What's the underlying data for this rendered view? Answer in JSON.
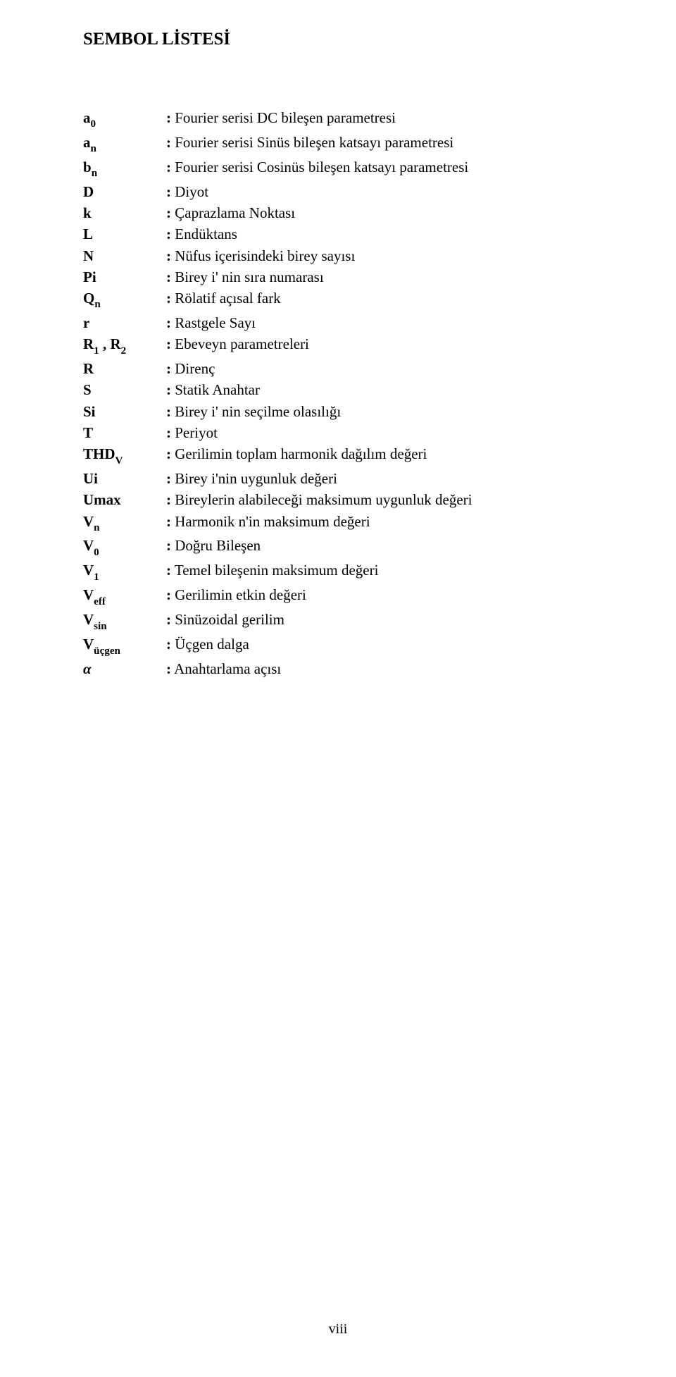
{
  "title": "SEMBOL LİSTESİ",
  "rows": [
    {
      "sym_html": "a<span class='sub'>0</span>",
      "desc": "Fourier serisi DC bileşen parametresi"
    },
    {
      "sym_html": "a<span class='sub'>n</span>",
      "desc": "Fourier serisi Sinüs bileşen katsayı parametresi"
    },
    {
      "sym_html": "b<span class='sub'>n</span>",
      "desc": "Fourier serisi Cosinüs bileşen katsayı parametresi"
    },
    {
      "sym_html": "D",
      "desc": "Diyot"
    },
    {
      "sym_html": "k",
      "desc": "Çaprazlama Noktası"
    },
    {
      "sym_html": "L",
      "desc": "Endüktans"
    },
    {
      "sym_html": "N",
      "desc": "Nüfus içerisindeki birey sayısı"
    },
    {
      "sym_html": "Pi",
      "desc": "Birey i' nin sıra numarası"
    },
    {
      "sym_html": "Q<span class='sub'>n</span>",
      "desc": "Rölatif açısal fark"
    },
    {
      "sym_html": "r",
      "desc": "Rastgele Sayı"
    },
    {
      "sym_html": "R<span class='sub'>1</span> , R<span class='sub'>2</span>",
      "desc": "Ebeveyn parametreleri"
    },
    {
      "sym_html": "R",
      "desc": "Direnç"
    },
    {
      "sym_html": "S",
      "desc": "Statik Anahtar"
    },
    {
      "sym_html": "Si",
      "desc": "Birey i' nin seçilme olasılığı"
    },
    {
      "sym_html": "T",
      "desc": "Periyot"
    },
    {
      "sym_html": "THD<span class='sub'>V</span>",
      "desc": "Gerilimin toplam harmonik dağılım değeri"
    },
    {
      "sym_html": "Ui",
      "desc": "Birey i'nin uygunluk değeri"
    },
    {
      "sym_html": "Umax",
      "desc": "Bireylerin alabileceği maksimum uygunluk değeri"
    },
    {
      "sym_html": "V<span class='sub'>n</span>",
      "desc": "Harmonik n'in maksimum değeri"
    },
    {
      "sym_html": "V<span class='sub'>0</span>",
      "desc": "Doğru Bileşen"
    },
    {
      "sym_html": "V<span class='sub'>1</span>",
      "desc": "Temel bileşenin maksimum değeri"
    },
    {
      "sym_html": "V<span class='sub'>eff</span>",
      "desc": "Gerilimin etkin değeri"
    },
    {
      "sym_html": "V<span class='sub'>sin</span>",
      "desc": "Sinüzoidal gerilim"
    },
    {
      "sym_html": "V<span class='sub'>üçgen</span>",
      "desc": "Üçgen dalga"
    },
    {
      "sym_html": "<span class='alpha'>α</span>",
      "desc": "Anahtarlama açısı"
    }
  ],
  "footer": "viii"
}
